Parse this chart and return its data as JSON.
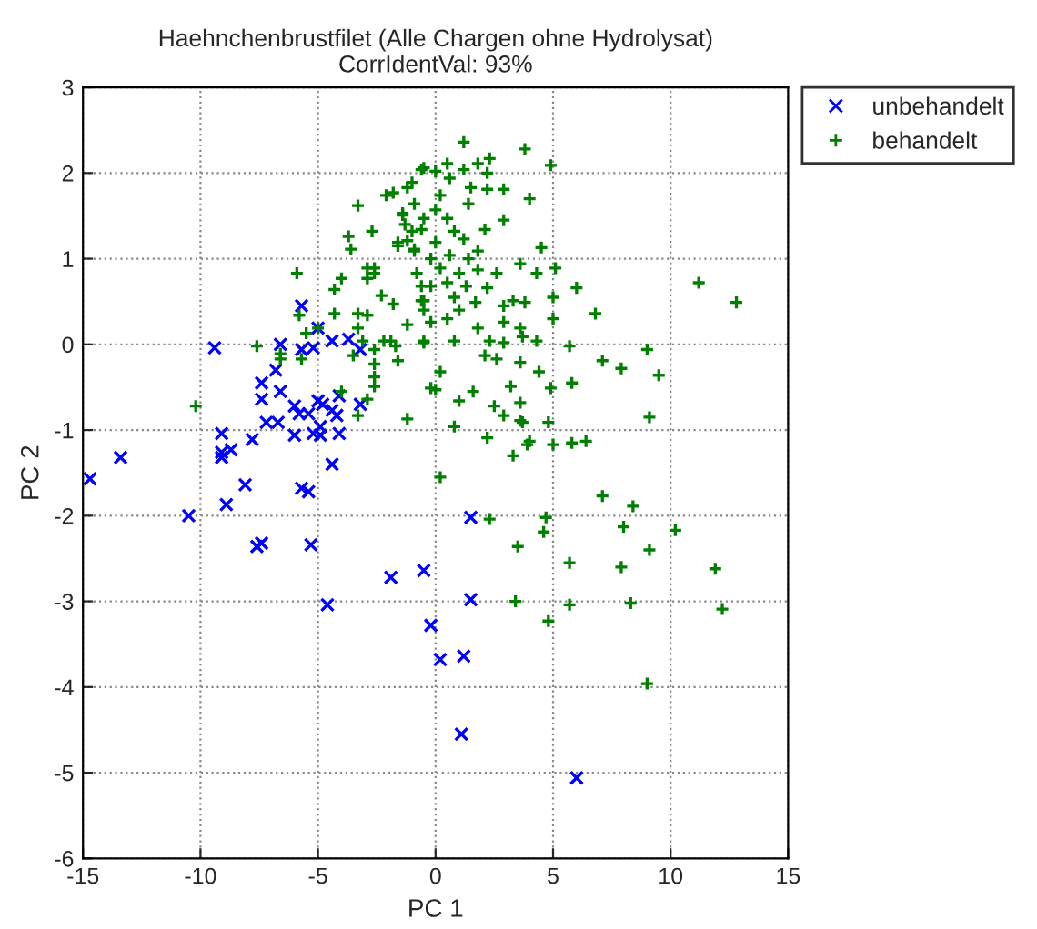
{
  "chart_data": {
    "type": "scatter",
    "title": "Haehnchenbrustfilet (Alle Chargen ohne Hydrolysat)",
    "subtitle": "CorrIdentVal: 93%",
    "xlabel": "PC 1",
    "ylabel": "PC 2",
    "xlim": [
      -15,
      15
    ],
    "xticks": [
      -15,
      -10,
      -5,
      0,
      5,
      10,
      15
    ],
    "ylim": [
      -6,
      3
    ],
    "yticks": [
      -6,
      -5,
      -4,
      -3,
      -2,
      -1,
      0,
      1,
      2,
      3
    ],
    "grid": true,
    "legend": "top right",
    "series": [
      {
        "name": "unbehandelt",
        "color": "#0000ff",
        "marker": "x",
        "x": [
          -14.7,
          -13.4,
          -10.5,
          -9.1,
          -9.1,
          -9.1,
          -8.7,
          -8.9,
          -8.1,
          -7.8,
          -7.6,
          -7.4,
          -7.2,
          -6.7,
          -6.0,
          -5.7,
          -5.4,
          -5.3,
          -5.2,
          -4.9,
          -4.9,
          -4.4,
          -4.6,
          -1.9,
          -0.5,
          -0.2,
          1.5,
          1.5,
          0.2,
          1.2,
          1.1,
          6.0,
          -9.4,
          -5.7,
          -5.0,
          -5.7,
          -5.2,
          -4.4,
          -3.7,
          -3.2,
          -6.6,
          -6.8,
          -7.4,
          -7.4,
          -6.6,
          -6.0,
          -5.8,
          -5.4,
          -5.0,
          -4.8,
          -4.4,
          -4.2,
          -4.1,
          -3.2,
          -4.1
        ],
        "values": [
          -1.57,
          -1.32,
          -2.0,
          -1.04,
          -1.32,
          -1.26,
          -1.23,
          -1.87,
          -1.64,
          -1.11,
          -2.36,
          -2.32,
          -0.91,
          -0.91,
          -1.06,
          -1.68,
          -1.72,
          -2.34,
          -1.04,
          -1.06,
          -0.96,
          -1.4,
          -3.04,
          -2.72,
          -2.64,
          -3.28,
          -2.02,
          -2.98,
          -3.68,
          -3.64,
          -4.55,
          -5.06,
          -0.04,
          0.45,
          0.19,
          -0.06,
          -0.04,
          0.04,
          0.06,
          -0.06,
          0.0,
          -0.3,
          -0.45,
          -0.64,
          -0.55,
          -0.72,
          -0.81,
          -0.81,
          -0.66,
          -0.7,
          -0.77,
          -0.83,
          -0.6,
          -0.7,
          -1.04
        ]
      },
      {
        "name": "behandelt",
        "color": "#008000",
        "marker": "cross",
        "x": [
          -10.2,
          -7.6,
          -5.9,
          -5.8,
          -6.6,
          -6.6,
          -5.7,
          -5.5,
          -5.0,
          -4.3,
          -4.3,
          -4.0,
          -3.7,
          -3.6,
          -3.3,
          -2.7,
          -2.9,
          -2.6,
          -3.3,
          -2.9,
          -3.3,
          -3.1,
          -3.5,
          -2.6,
          -2.6,
          -2.6,
          -2.6,
          -2.9,
          -4.0,
          -3.3,
          -2.2,
          -1.7,
          -1.6,
          -1.8,
          -1.2,
          -1.2,
          -2.1,
          -1.2,
          -0.6,
          -1.6,
          -1.4,
          -1.0,
          -0.9,
          -0.6,
          -0.5,
          -0.5,
          -0.2,
          -0.2,
          1.2,
          3.8,
          4.9,
          -0.5,
          0,
          0.5,
          1.8,
          2.3,
          2.2,
          1.2,
          0.6,
          -1.0,
          -1.8,
          0.2,
          1.5,
          2.2,
          2.9,
          4.0,
          -0.9,
          0,
          1.4,
          -1.4,
          -0.5,
          0.5,
          2.9,
          -1.3,
          -0.6,
          0.8,
          2.1,
          -1.2,
          1.2,
          0,
          -1.6,
          -0.9,
          1.8,
          4.5,
          0.6,
          -0.2,
          1.4,
          -2.6,
          0.2,
          2.6,
          3.6,
          4.3,
          5.1,
          -0.8,
          1.0,
          1.8,
          -2.9,
          -0.2,
          0.5,
          1.3,
          2.2,
          6.0,
          11.2,
          12.8,
          -2.3,
          -0.6,
          0.8,
          1.7,
          3.3,
          3.8,
          5.0,
          6.8,
          -0.5,
          1.0,
          2.9,
          0.5,
          1.8,
          2.9,
          3.6,
          5.0,
          -1.9,
          -0.5,
          0.8,
          2.3,
          2.9,
          3.7,
          4.3,
          5.7,
          9.0,
          2.1,
          2.6,
          7.1,
          7.9,
          0.2,
          3.6,
          4.4,
          9.5,
          5.8,
          3.2,
          0,
          1.6,
          4.9,
          1.0,
          2.5,
          3.6,
          2.9,
          3.6,
          9.1,
          0.8,
          2.2,
          4.0,
          3.3,
          5.0,
          5.8,
          6.4,
          3.7,
          4.8,
          3.9,
          0.2,
          7.1,
          8.4,
          2.3,
          4.7,
          4.6,
          8.0,
          10.2,
          3.5,
          9.1,
          5.7,
          7.9,
          11.9,
          3.4,
          5.7,
          8.3,
          12.2,
          4.8,
          9.0
        ],
        "values": [
          -0.72,
          -0.02,
          0.83,
          0.34,
          -0.11,
          -0.17,
          -0.17,
          0.13,
          0.19,
          0.64,
          0.36,
          0.77,
          1.26,
          1.11,
          1.62,
          1.32,
          0.89,
          0.83,
          0.36,
          0.34,
          0.19,
          0.04,
          -0.13,
          -0.06,
          -0.23,
          -0.38,
          -0.49,
          -0.64,
          -0.55,
          -0.83,
          0.04,
          -0.02,
          -0.19,
          0.47,
          0.23,
          -0.87,
          1.74,
          1.83,
          2.04,
          1.19,
          1.53,
          1.32,
          1.11,
          0.68,
          0.51,
          0.02,
          0.26,
          -0.51,
          2.36,
          2.28,
          2.09,
          2.06,
          2.02,
          2.11,
          2.11,
          2.17,
          2.0,
          2.04,
          1.94,
          1.89,
          1.77,
          1.74,
          1.83,
          1.81,
          1.81,
          1.7,
          1.64,
          1.57,
          1.64,
          1.51,
          1.47,
          1.47,
          1.45,
          1.4,
          1.34,
          1.32,
          1.34,
          1.21,
          1.23,
          1.19,
          1.15,
          1.09,
          1.09,
          1.13,
          1.04,
          1.0,
          1.0,
          0.89,
          0.89,
          0.83,
          0.94,
          0.83,
          0.89,
          0.83,
          0.83,
          0.87,
          0.77,
          0.68,
          0.72,
          0.68,
          0.66,
          0.66,
          0.72,
          0.49,
          0.57,
          0.51,
          0.55,
          0.49,
          0.51,
          0.49,
          0.55,
          0.36,
          0.4,
          0.4,
          0.45,
          0.3,
          0.19,
          0.26,
          0.19,
          0.3,
          0.04,
          0.04,
          0.04,
          0.04,
          0.02,
          0.09,
          0.04,
          -0.02,
          -0.06,
          -0.13,
          -0.17,
          -0.19,
          -0.28,
          -0.32,
          -0.21,
          -0.32,
          -0.36,
          -0.45,
          -0.49,
          -0.53,
          -0.55,
          -0.51,
          -0.66,
          -0.72,
          -0.68,
          -0.83,
          -0.89,
          -0.85,
          -0.96,
          -1.09,
          -1.13,
          -1.3,
          -1.17,
          -1.15,
          -1.13,
          -0.91,
          -0.91,
          -1.17,
          -1.55,
          -1.77,
          -1.89,
          -2.04,
          -2.02,
          -2.19,
          -2.13,
          -2.17,
          -2.36,
          -2.4,
          -2.55,
          -2.6,
          -2.62,
          -3.0,
          -3.04,
          -3.02,
          -3.09,
          -3.23,
          -3.96
        ]
      }
    ]
  }
}
